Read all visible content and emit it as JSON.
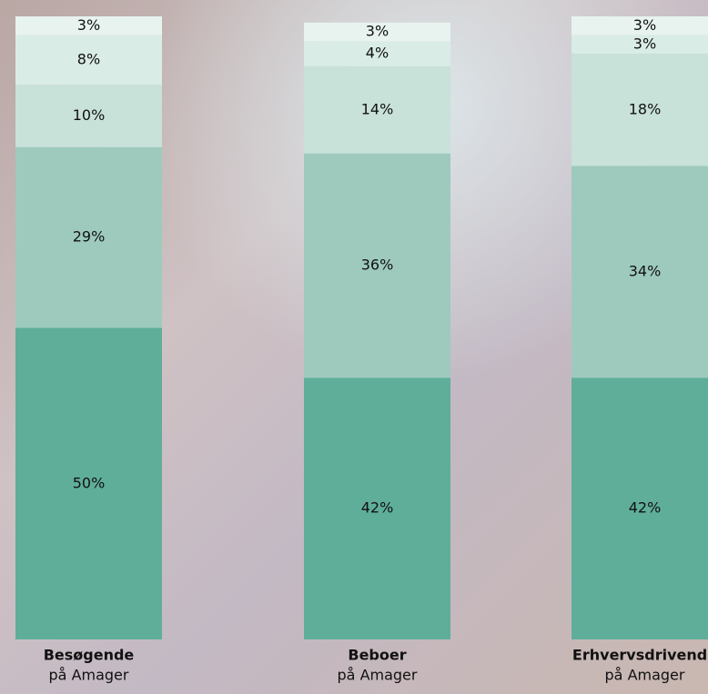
{
  "chart_data": {
    "type": "bar",
    "stacked": true,
    "categories": [
      "Besøgende",
      "Beboer",
      "Erhvervsdrivende"
    ],
    "category_sublabels": [
      "på Amager",
      "på Amager",
      "på Amager"
    ],
    "ylim": [
      0,
      100
    ],
    "series": [
      {
        "color": "#5fae9a",
        "values": [
          50,
          42,
          42
        ],
        "value_labels": [
          "50%",
          "42%",
          "42%"
        ]
      },
      {
        "color": "#9ecabe",
        "values": [
          29,
          36,
          34
        ],
        "value_labels": [
          "29%",
          "36%",
          "34%"
        ]
      },
      {
        "color": "#c8e1d9",
        "values": [
          10,
          14,
          18
        ],
        "value_labels": [
          "10%",
          "14%",
          "18%"
        ]
      },
      {
        "color": "#d9ece6",
        "values": [
          8,
          4,
          3
        ],
        "value_labels": [
          "8%",
          "4%",
          "3%"
        ]
      },
      {
        "color": "#e8f3ef",
        "values": [
          3,
          3,
          3
        ],
        "value_labels": [
          "3%",
          "3%",
          "3%"
        ]
      }
    ]
  }
}
